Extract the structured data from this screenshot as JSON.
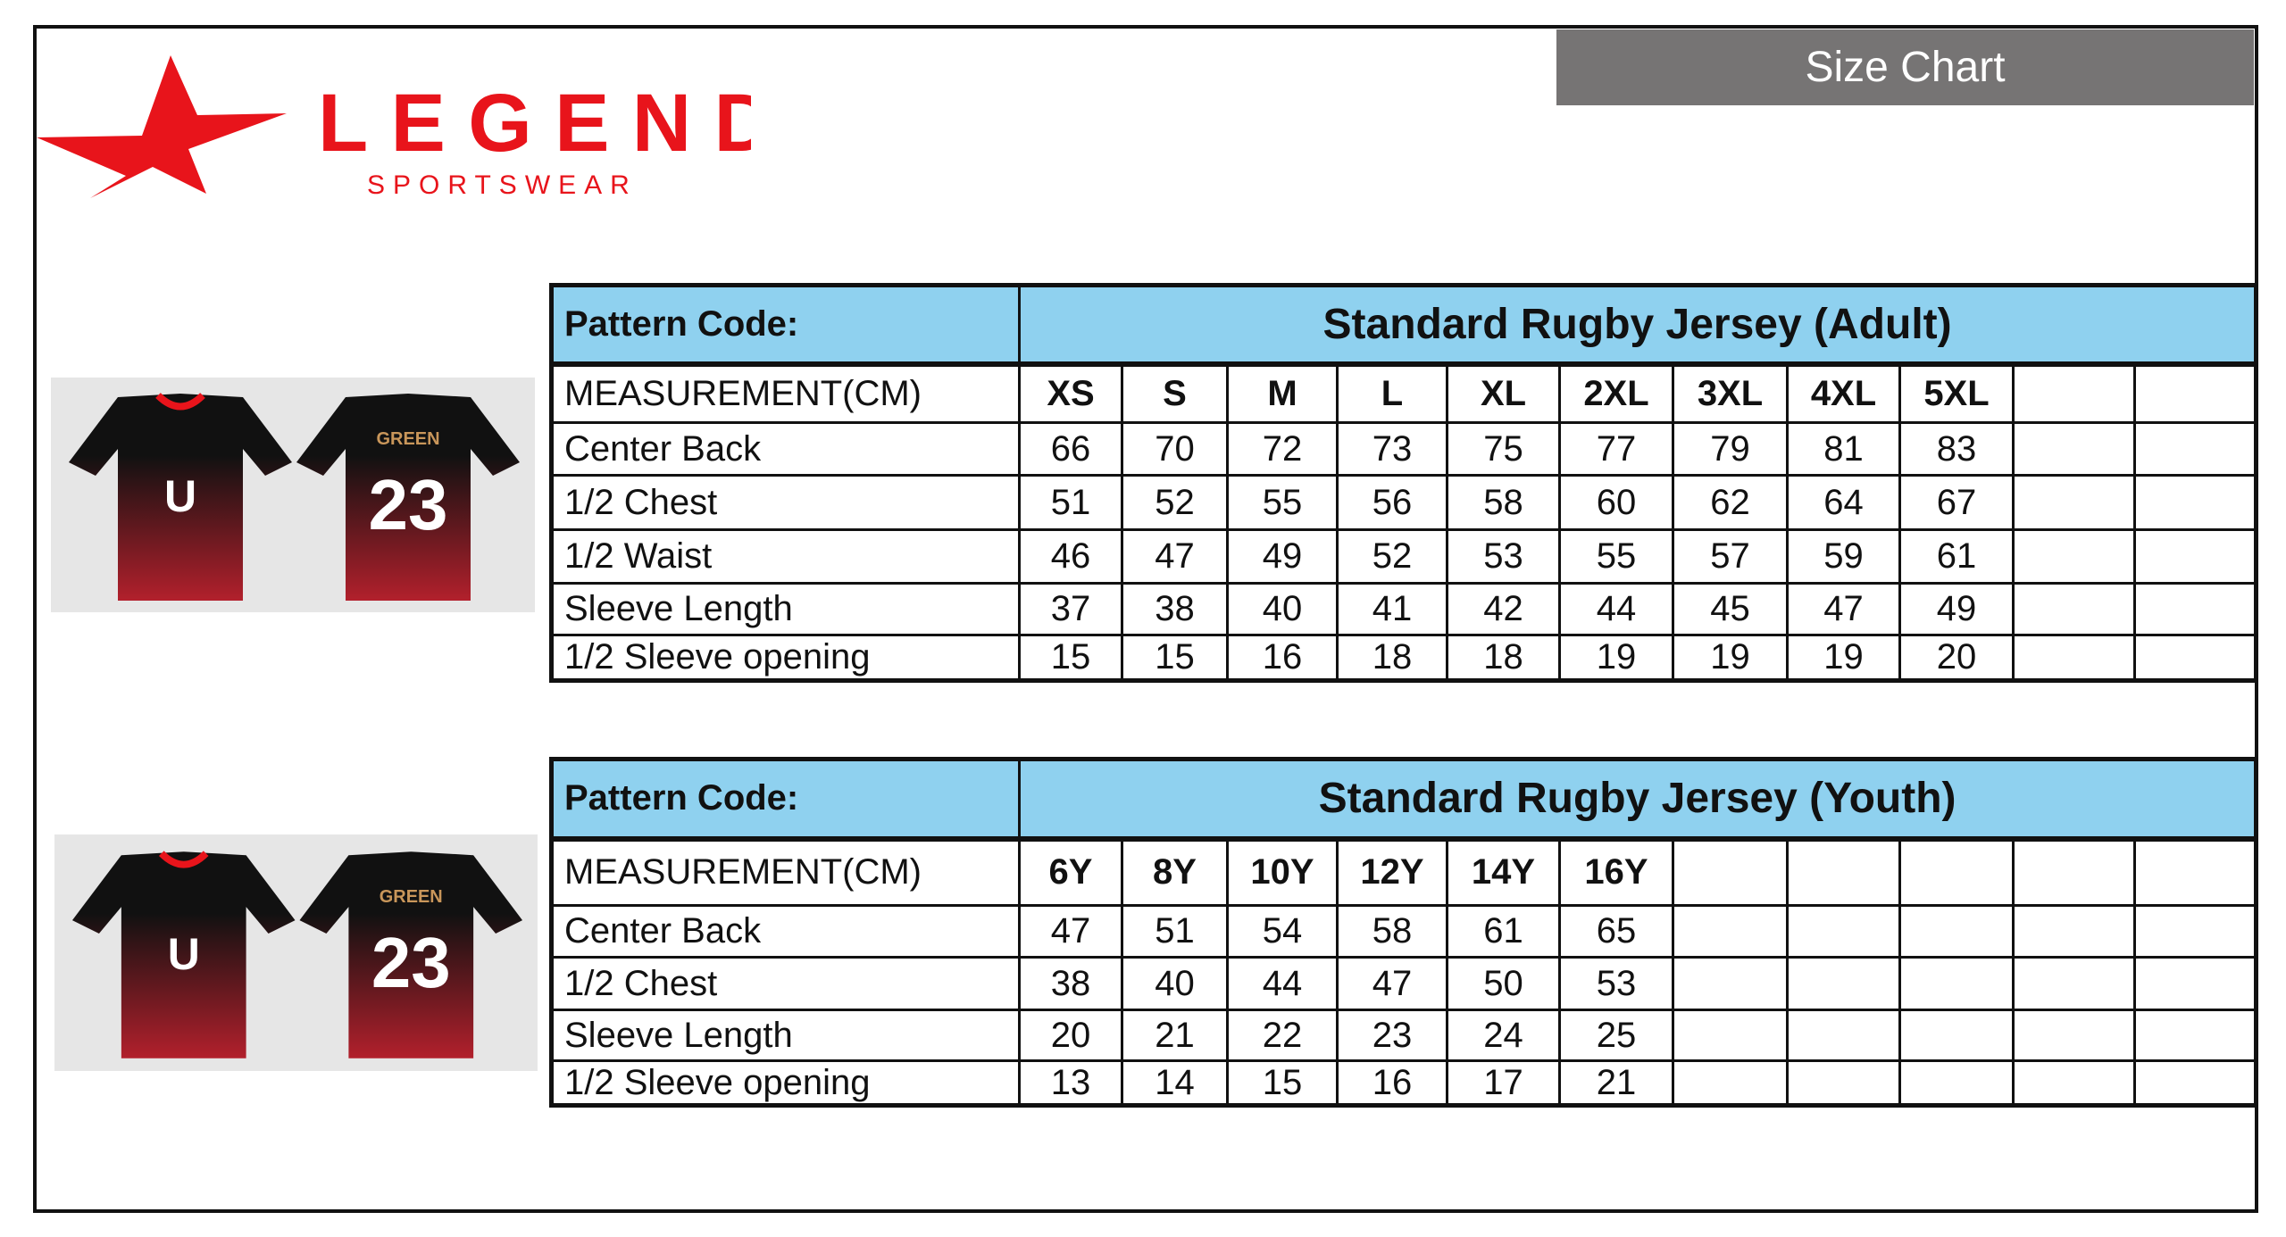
{
  "header": {
    "size_chart_label": "Size Chart"
  },
  "logo": {
    "brand": "LEGEND",
    "sub": "SPORTSWEAR",
    "color": "#e8141b"
  },
  "jersey": {
    "number": "23",
    "team": "GREEN"
  },
  "colors": {
    "header_bg": "#8fd1ef",
    "size_chart_bg": "#767474"
  },
  "tables": [
    {
      "pattern_label": "Pattern Code:",
      "title": "Standard Rugby Jersey (Adult)",
      "measurement_label": "MEASUREMENT(CM)",
      "sizes": [
        "XS",
        "S",
        "M",
        "L",
        "XL",
        "2XL",
        "3XL",
        "4XL",
        "5XL",
        "",
        ""
      ],
      "rows": [
        {
          "label": "Center Back",
          "values": [
            "66",
            "70",
            "72",
            "73",
            "75",
            "77",
            "79",
            "81",
            "83",
            "",
            ""
          ]
        },
        {
          "label": "1/2 Chest",
          "values": [
            "51",
            "52",
            "55",
            "56",
            "58",
            "60",
            "62",
            "64",
            "67",
            "",
            ""
          ]
        },
        {
          "label": "1/2 Waist",
          "values": [
            "46",
            "47",
            "49",
            "52",
            "53",
            "55",
            "57",
            "59",
            "61",
            "",
            ""
          ]
        },
        {
          "label": "Sleeve Length",
          "values": [
            "37",
            "38",
            "40",
            "41",
            "42",
            "44",
            "45",
            "47",
            "49",
            "",
            ""
          ]
        },
        {
          "label": "1/2 Sleeve opening",
          "values": [
            "15",
            "15",
            "16",
            "18",
            "18",
            "19",
            "19",
            "19",
            "20",
            "",
            ""
          ]
        }
      ]
    },
    {
      "pattern_label": "Pattern Code:",
      "title": "Standard Rugby Jersey (Youth)",
      "measurement_label": "MEASUREMENT(CM)",
      "sizes": [
        "6Y",
        "8Y",
        "10Y",
        "12Y",
        "14Y",
        "16Y",
        "",
        "",
        "",
        "",
        ""
      ],
      "rows": [
        {
          "label": "Center Back",
          "values": [
            "47",
            "51",
            "54",
            "58",
            "61",
            "65",
            "",
            "",
            "",
            "",
            ""
          ]
        },
        {
          "label": "1/2 Chest",
          "values": [
            "38",
            "40",
            "44",
            "47",
            "50",
            "53",
            "",
            "",
            "",
            "",
            ""
          ]
        },
        {
          "label": "Sleeve Length",
          "values": [
            "20",
            "21",
            "22",
            "23",
            "24",
            "25",
            "",
            "",
            "",
            "",
            ""
          ]
        },
        {
          "label": "1/2 Sleeve opening",
          "values": [
            "13",
            "14",
            "15",
            "16",
            "17",
            "21",
            "",
            "",
            "",
            "",
            ""
          ]
        }
      ]
    }
  ]
}
